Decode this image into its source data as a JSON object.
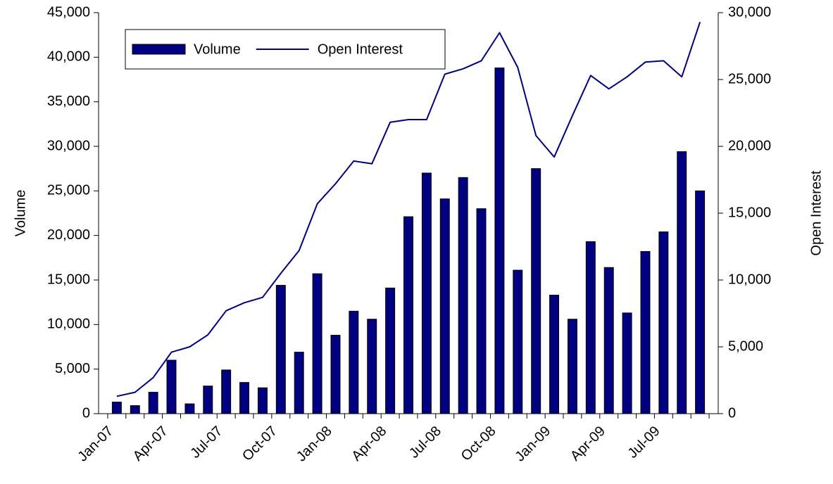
{
  "chart_data": {
    "type": "bar-line",
    "y_label": "Volume",
    "y2_label": "Open Interest",
    "categories": [
      "Jan-07",
      null,
      null,
      "Apr-07",
      null,
      null,
      "Jul-07",
      null,
      null,
      "Oct-07",
      null,
      null,
      "Jan-08",
      null,
      null,
      "Apr-08",
      null,
      null,
      "Jul-08",
      null,
      null,
      "Oct-08",
      null,
      null,
      "Jan-09",
      null,
      null,
      "Apr-09",
      null,
      null,
      "Jul-09",
      null,
      null
    ],
    "series": [
      {
        "name": "Volume",
        "type": "bar",
        "axis": "y",
        "color": "#000080",
        "values": [
          1300,
          900,
          2400,
          6000,
          1100,
          3100,
          4900,
          3500,
          2900,
          14400,
          6900,
          15700,
          8800,
          11500,
          10600,
          14100,
          22100,
          27000,
          24100,
          26500,
          23000,
          38800,
          16100,
          27500,
          13300,
          10600,
          19300,
          16400,
          11300,
          18200,
          20400,
          29400,
          25000
        ]
      },
      {
        "name": "Open Interest",
        "type": "line",
        "axis": "y2",
        "color": "#000080",
        "values": [
          1300,
          1600,
          2700,
          4600,
          5000,
          5900,
          7700,
          8300,
          8700,
          10500,
          12200,
          15700,
          17200,
          18900,
          18700,
          21800,
          22000,
          22000,
          25400,
          25800,
          26400,
          28500,
          25900,
          20800,
          19200,
          22300,
          25300,
          24300,
          25200,
          26300,
          26400,
          25200,
          29300
        ]
      }
    ],
    "ylim": [
      0,
      45000
    ],
    "yticks": [
      0,
      {
        "value": 5000,
        "label": "5,000"
      },
      {
        "value": 10000,
        "label": "10,000"
      },
      {
        "value": 15000,
        "label": "15,000"
      },
      {
        "value": 20000,
        "label": "20,000"
      },
      {
        "value": 25000,
        "label": "25,000"
      },
      {
        "value": 30000,
        "label": "30,000"
      },
      {
        "value": 35000,
        "label": "35,000"
      },
      {
        "value": 40000,
        "label": "40,000"
      },
      {
        "value": 45000,
        "label": "45,000"
      }
    ],
    "y2lim": [
      0,
      30000
    ],
    "y2ticks": [
      0,
      {
        "value": 5000,
        "label": "5,000"
      },
      {
        "value": 10000,
        "label": "10,000"
      },
      {
        "value": 15000,
        "label": "15,000"
      },
      {
        "value": 20000,
        "label": "20,000"
      },
      {
        "value": 25000,
        "label": "25,000"
      },
      {
        "value": 30000,
        "label": "30,000"
      }
    ],
    "grid": false,
    "legend": "top-left"
  }
}
